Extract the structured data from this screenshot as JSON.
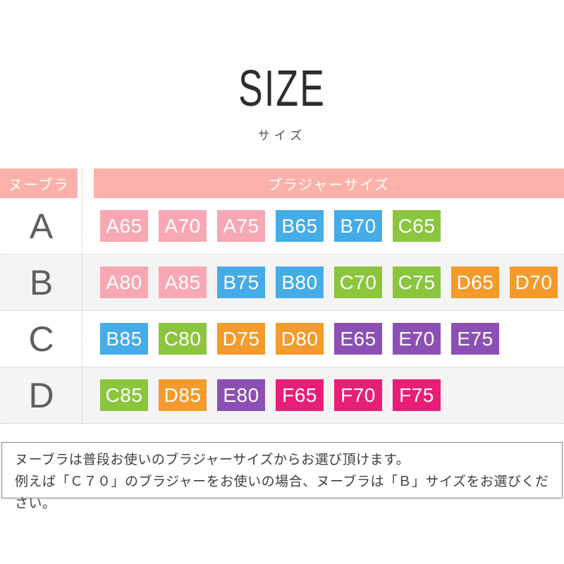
{
  "page": {
    "title": "SIZE",
    "subtitle": "サイズ"
  },
  "table": {
    "header": {
      "left": "ヌーブラ",
      "right": "ブラジャーサイズ"
    },
    "rows": [
      {
        "label": "A",
        "sizes": [
          {
            "text": "A65",
            "color": "pink"
          },
          {
            "text": "A70",
            "color": "pink"
          },
          {
            "text": "A75",
            "color": "pink"
          },
          {
            "text": "B65",
            "color": "blue"
          },
          {
            "text": "B70",
            "color": "blue"
          },
          {
            "text": "C65",
            "color": "green"
          }
        ]
      },
      {
        "label": "B",
        "sizes": [
          {
            "text": "A80",
            "color": "pink"
          },
          {
            "text": "A85",
            "color": "pink"
          },
          {
            "text": "B75",
            "color": "blue"
          },
          {
            "text": "B80",
            "color": "blue"
          },
          {
            "text": "C70",
            "color": "green"
          },
          {
            "text": "C75",
            "color": "green"
          },
          {
            "text": "D65",
            "color": "orange"
          },
          {
            "text": "D70",
            "color": "orange"
          }
        ]
      },
      {
        "label": "C",
        "sizes": [
          {
            "text": "B85",
            "color": "blue"
          },
          {
            "text": "C80",
            "color": "green"
          },
          {
            "text": "D75",
            "color": "orange"
          },
          {
            "text": "D80",
            "color": "orange"
          },
          {
            "text": "E65",
            "color": "purple"
          },
          {
            "text": "E70",
            "color": "purple"
          },
          {
            "text": "E75",
            "color": "purple"
          }
        ]
      },
      {
        "label": "D",
        "sizes": [
          {
            "text": "C85",
            "color": "green"
          },
          {
            "text": "D85",
            "color": "orange"
          },
          {
            "text": "E80",
            "color": "purple"
          },
          {
            "text": "F65",
            "color": "magenta"
          },
          {
            "text": "F70",
            "color": "magenta"
          },
          {
            "text": "F75",
            "color": "magenta"
          }
        ]
      }
    ]
  },
  "footer": {
    "line1": "ヌーブラは普段お使いのブラジャーサイズからお選び頂けます。",
    "line2": "例えば「Ｃ７０」のブラジャーをお使いの場合、ヌーブラは「Ｂ」サイズをお選びください。"
  },
  "colors": {
    "header_pink": "#fbb1aa",
    "pink": "#f8a7b4",
    "blue": "#45ace8",
    "green": "#8bc63e",
    "orange": "#f39b2c",
    "purple": "#8c50b4",
    "magenta": "#e91e77",
    "row_alt_bg": "#f4f4f4"
  },
  "chart_data": {
    "type": "table",
    "title": "SIZE / サイズ",
    "columns": [
      "ヌーブラ",
      "ブラジャーサイズ"
    ],
    "rows": [
      {
        "nubra_size": "A",
        "bra_sizes": [
          "A65",
          "A70",
          "A75",
          "B65",
          "B70",
          "C65"
        ]
      },
      {
        "nubra_size": "B",
        "bra_sizes": [
          "A80",
          "A85",
          "B75",
          "B80",
          "C70",
          "C75",
          "D65",
          "D70"
        ]
      },
      {
        "nubra_size": "C",
        "bra_sizes": [
          "B85",
          "C80",
          "D75",
          "D80",
          "E65",
          "E70",
          "E75"
        ]
      },
      {
        "nubra_size": "D",
        "bra_sizes": [
          "C85",
          "D85",
          "E80",
          "F65",
          "F70",
          "F75"
        ]
      }
    ],
    "badge_color_by_cup_letter": {
      "A": "pink",
      "B": "blue",
      "C": "green",
      "D": "orange",
      "E": "purple",
      "F": "magenta"
    },
    "note": "ヌーブラは普段お使いのブラジャーサイズからお選び頂けます。例えば「Ｃ７０」のブラジャーをお使いの場合、ヌーブラは「Ｂ」サイズをお選びください。"
  }
}
